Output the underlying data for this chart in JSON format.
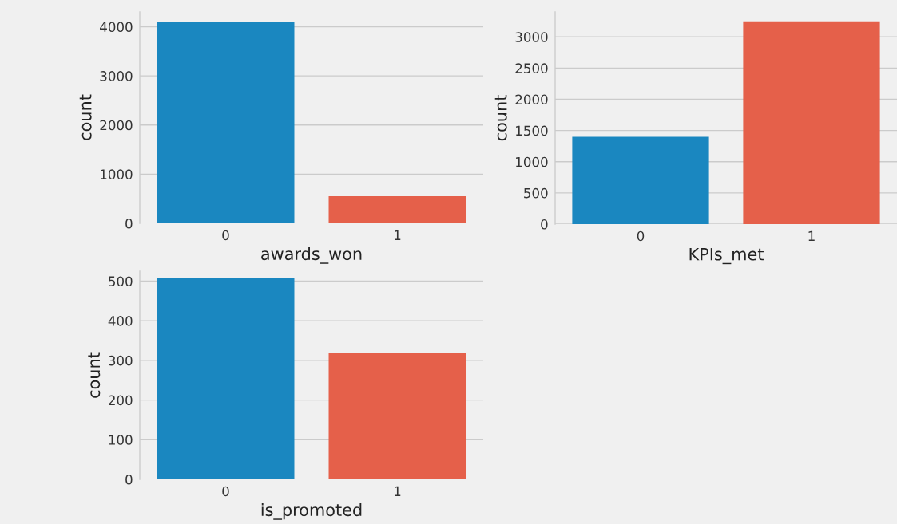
{
  "chart_data": [
    {
      "type": "bar",
      "xlabel": "awards_won",
      "ylabel": "count",
      "categories": [
        "0",
        "1"
      ],
      "values": [
        4100,
        550
      ],
      "colors": [
        "#1a87c0",
        "#e5604a"
      ],
      "ylim": [
        0,
        4300
      ],
      "yticks": [
        0,
        1000,
        2000,
        3000,
        4000
      ],
      "grid": "y",
      "legend": false
    },
    {
      "type": "bar",
      "xlabel": "KPIs_met",
      "ylabel": "count",
      "categories": [
        "0",
        "1"
      ],
      "values": [
        1400,
        3250
      ],
      "colors": [
        "#1a87c0",
        "#e5604a"
      ],
      "ylim": [
        0,
        3400
      ],
      "yticks": [
        0,
        500,
        1000,
        1500,
        2000,
        2500,
        3000
      ],
      "grid": "y",
      "legend": false
    },
    {
      "type": "bar",
      "xlabel": "is_promoted",
      "ylabel": "count",
      "categories": [
        "0",
        "1"
      ],
      "values": [
        508,
        320
      ],
      "colors": [
        "#1a87c0",
        "#e5604a"
      ],
      "ylim": [
        0,
        525
      ],
      "yticks": [
        0,
        100,
        200,
        300,
        400,
        500
      ],
      "grid": "y",
      "legend": false
    }
  ]
}
